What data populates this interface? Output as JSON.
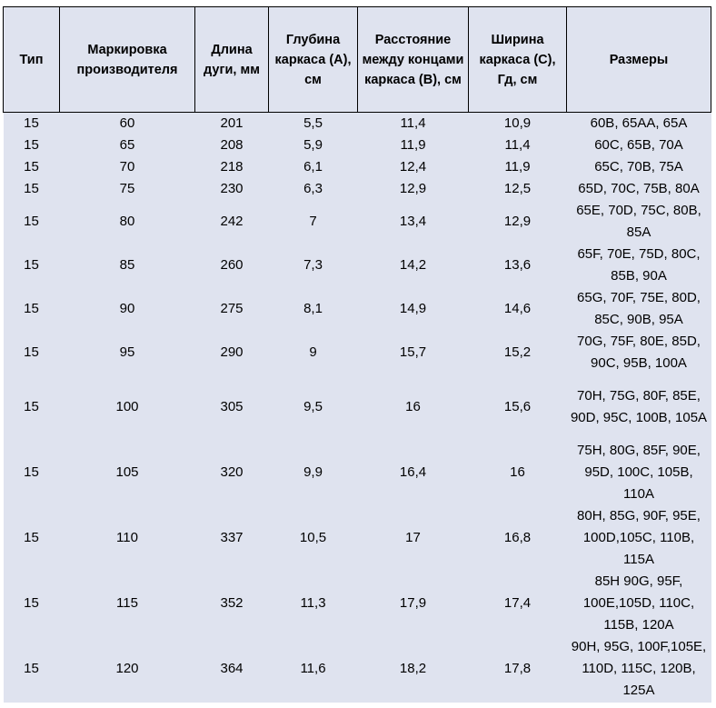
{
  "headers": {
    "type": "Тип",
    "maker": "Маркировка производителя",
    "arc": "Длина дуги, мм",
    "depth": "Глубина каркаса (А), см",
    "distance": "Расстояние между концами каркаса (В), см",
    "width": "Ширина каркаса (С), Гд, см",
    "sizes": "Размеры"
  },
  "rows": [
    {
      "type": "15",
      "maker": "60",
      "arc": "201",
      "depth": "5,5",
      "distance": "11,4",
      "width": "10,9",
      "sizes": "60B, 65AA, 65A"
    },
    {
      "type": "15",
      "maker": "65",
      "arc": "208",
      "depth": "5,9",
      "distance": "11,9",
      "width": "11,4",
      "sizes": "60C, 65B, 70A"
    },
    {
      "type": "15",
      "maker": "70",
      "arc": "218",
      "depth": "6,1",
      "distance": "12,4",
      "width": "11,9",
      "sizes": "65C, 70B, 75A"
    },
    {
      "type": "15",
      "maker": "75",
      "arc": "230",
      "depth": "6,3",
      "distance": "12,9",
      "width": "12,5",
      "sizes": "65D, 70C, 75B, 80A"
    },
    {
      "type": "15",
      "maker": "80",
      "arc": "242",
      "depth": "7",
      "distance": "13,4",
      "width": "12,9",
      "sizes": "65E, 70D, 75C, 80B, 85A"
    },
    {
      "type": "15",
      "maker": "85",
      "arc": "260",
      "depth": "7,3",
      "distance": "14,2",
      "width": "13,6",
      "sizes": "65F, 70E, 75D, 80C, 85B, 90A"
    },
    {
      "type": "15",
      "maker": "90",
      "arc": "275",
      "depth": "8,1",
      "distance": "14,9",
      "width": "14,6",
      "sizes": "65G, 70F, 75E, 80D, 85C, 90B, 95A"
    },
    {
      "type": "15",
      "maker": "95",
      "arc": "290",
      "depth": "9",
      "distance": "15,7",
      "width": "15,2",
      "sizes": "70G, 75F, 80E, 85D, 90C, 95B, 100A"
    },
    {
      "type": "15",
      "maker": "100",
      "arc": "305",
      "depth": "9,5",
      "distance": "16",
      "width": "15,6",
      "sizes": "70H, 75G, 80F, 85E, 90D, 95C, 100B, 105A"
    },
    {
      "type": "15",
      "maker": "105",
      "arc": "320",
      "depth": "9,9",
      "distance": "16,4",
      "width": "16",
      "sizes": "75H, 80G, 85F, 90E, 95D, 100C, 105B, 110A"
    },
    {
      "type": "15",
      "maker": "110",
      "arc": "337",
      "depth": "10,5",
      "distance": "17",
      "width": "16,8",
      "sizes": "80H, 85G, 90F, 95E, 100D,105C, 110B, 115A"
    },
    {
      "type": "15",
      "maker": "115",
      "arc": "352",
      "depth": "11,3",
      "distance": "17,9",
      "width": "17,4",
      "sizes": "85H 90G, 95F, 100E,105D, 110C, 115B, 120A"
    },
    {
      "type": "15",
      "maker": "120",
      "arc": "364",
      "depth": "11,6",
      "distance": "18,2",
      "width": "17,8",
      "sizes": "90H, 95G, 100F,105E, 110D, 115C, 120B, 125A"
    }
  ]
}
